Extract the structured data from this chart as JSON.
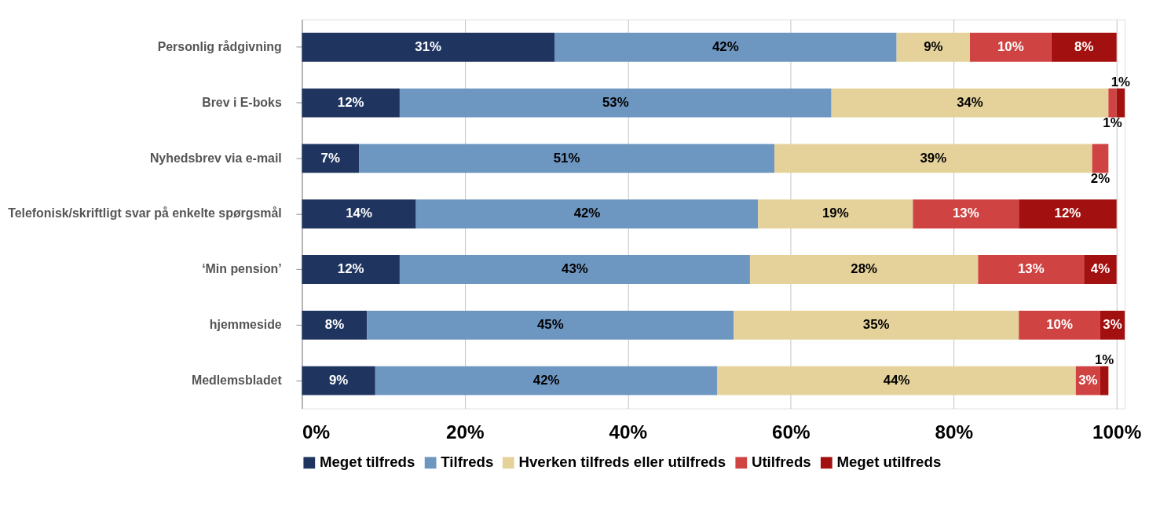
{
  "chart_data": {
    "type": "bar",
    "orientation": "horizontal",
    "stacked": true,
    "categories": [
      "Personlig rådgivning",
      "Brev i E-boks",
      "Nyhedsbrev via e-mail",
      "Telefonisk/skriftligt svar på enkelte spørgsmål",
      "‘Min pension’",
      "hjemmeside",
      "Medlemsbladet"
    ],
    "series": [
      {
        "name": "Meget tilfreds",
        "color": "#1f3560",
        "values": [
          31,
          12,
          7,
          14,
          12,
          8,
          9
        ],
        "value_labels": [
          "31%",
          "12%",
          "7%",
          "14%",
          "12%",
          "8%",
          "9%"
        ]
      },
      {
        "name": "Tilfreds",
        "color": "#6d96c1",
        "values": [
          42,
          53,
          51,
          42,
          43,
          45,
          42
        ],
        "value_labels": [
          "42%",
          "53%",
          "51%",
          "42%",
          "43%",
          "45%",
          "42%"
        ]
      },
      {
        "name": "Hverken tilfreds eller utilfreds",
        "color": "#e5d29b",
        "values": [
          9,
          34,
          39,
          19,
          28,
          35,
          44
        ],
        "value_labels": [
          "9%",
          "34%",
          "39%",
          "19%",
          "28%",
          "35%",
          "44%"
        ]
      },
      {
        "name": "Utilfreds",
        "color": "#d04343",
        "values": [
          10,
          1,
          2,
          13,
          13,
          10,
          3
        ],
        "value_labels": [
          "10%",
          "1%",
          "2%",
          "13%",
          "13%",
          "10%",
          "3%"
        ]
      },
      {
        "name": "Meget utilfreds",
        "color": "#a2110f",
        "values": [
          8,
          1,
          null,
          12,
          4,
          3,
          1
        ],
        "value_labels": [
          "8%",
          "1%",
          null,
          "12%",
          "4%",
          "3%",
          "1%"
        ]
      }
    ],
    "xlim": [
      0,
      101
    ],
    "xticks": [
      {
        "value": 0,
        "label": "0%"
      },
      {
        "value": 20,
        "label": "20%"
      },
      {
        "value": 40,
        "label": "40%"
      },
      {
        "value": 60,
        "label": "60%"
      },
      {
        "value": 80,
        "label": "80%"
      },
      {
        "value": 100,
        "label": "100%"
      }
    ],
    "grid": "x",
    "legend": "bottom"
  }
}
